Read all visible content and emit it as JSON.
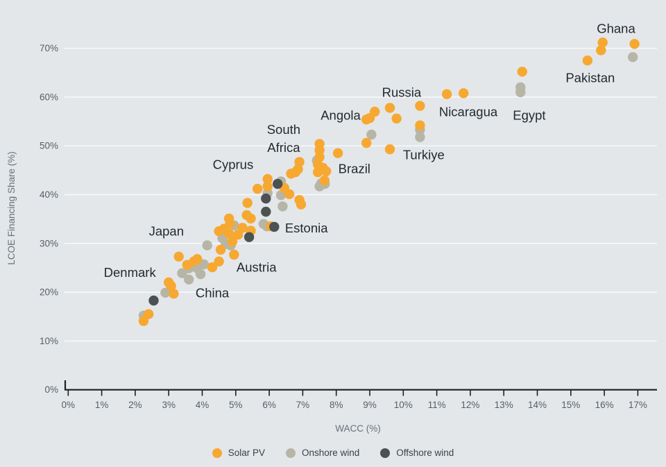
{
  "chart_data": {
    "type": "scatter",
    "title": "",
    "xlabel": "WACC (%)",
    "ylabel": "LCOE Financing Share (%)",
    "xlim": [
      0,
      17.5
    ],
    "ylim": [
      0,
      75
    ],
    "x_tick_values": [
      0,
      1,
      2,
      3,
      4,
      5,
      6,
      7,
      8,
      9,
      10,
      11,
      12,
      13,
      14,
      15,
      16,
      17
    ],
    "x_tick_labels": [
      "0%",
      "1%",
      "2%",
      "3%",
      "4%",
      "5%",
      "6%",
      "7%",
      "8%",
      "9%",
      "10%",
      "11%",
      "12%",
      "13%",
      "14%",
      "15%",
      "16%",
      "17%"
    ],
    "y_tick_values": [
      0,
      10,
      20,
      30,
      40,
      50,
      60,
      70
    ],
    "y_tick_labels": [
      "0%",
      "10%",
      "20%",
      "30%",
      "40%",
      "50%",
      "60%",
      "70%"
    ],
    "grid": "horizontal-white-lines",
    "legend_position": "bottom-center",
    "series": [
      {
        "name": "Solar PV",
        "color": "#F7A831",
        "points": [
          [
            2.25,
            14.1
          ],
          [
            2.4,
            15.5
          ],
          [
            3.0,
            22.0
          ],
          [
            3.07,
            21.3
          ],
          [
            3.15,
            19.7
          ],
          [
            3.3,
            27.3
          ],
          [
            3.55,
            25.6
          ],
          [
            3.75,
            26.3
          ],
          [
            3.85,
            26.8
          ],
          [
            4.3,
            25.1
          ],
          [
            4.5,
            26.3
          ],
          [
            4.5,
            32.5
          ],
          [
            4.55,
            28.7
          ],
          [
            4.65,
            33.0
          ],
          [
            4.8,
            32.0
          ],
          [
            4.83,
            34.1
          ],
          [
            4.8,
            35.1
          ],
          [
            4.9,
            30.4
          ],
          [
            4.95,
            27.7
          ],
          [
            5.07,
            31.8
          ],
          [
            5.2,
            33.2
          ],
          [
            5.33,
            35.8
          ],
          [
            5.45,
            35.1
          ],
          [
            5.45,
            32.6
          ],
          [
            5.35,
            38.3
          ],
          [
            5.65,
            41.2
          ],
          [
            5.95,
            43.2
          ],
          [
            5.95,
            41.7
          ],
          [
            6.05,
            33.5
          ],
          [
            6.45,
            41.4
          ],
          [
            6.6,
            40.1
          ],
          [
            6.65,
            44.3
          ],
          [
            6.78,
            44.6
          ],
          [
            6.86,
            45.2
          ],
          [
            6.9,
            46.7
          ],
          [
            6.9,
            38.9
          ],
          [
            6.95,
            38.0
          ],
          [
            7.45,
            44.6
          ],
          [
            7.45,
            46.2
          ],
          [
            7.5,
            50.4
          ],
          [
            7.5,
            49.1
          ],
          [
            7.5,
            47.7
          ],
          [
            7.6,
            45.5
          ],
          [
            7.65,
            42.9
          ],
          [
            7.7,
            44.8
          ],
          [
            8.05,
            48.5
          ],
          [
            8.9,
            50.6
          ],
          [
            8.9,
            55.4
          ],
          [
            9.0,
            55.7
          ],
          [
            9.15,
            57.0
          ],
          [
            9.6,
            57.8
          ],
          [
            9.6,
            49.3
          ],
          [
            9.8,
            55.6
          ],
          [
            10.5,
            58.2
          ],
          [
            10.5,
            54.2
          ],
          [
            11.3,
            60.6
          ],
          [
            11.8,
            60.8
          ],
          [
            13.55,
            65.2
          ],
          [
            15.5,
            67.5
          ],
          [
            15.9,
            69.6
          ],
          [
            15.95,
            71.2
          ],
          [
            16.9,
            70.9
          ]
        ]
      },
      {
        "name": "Onshore wind",
        "color": "#B7B5A6",
        "points": [
          [
            2.25,
            15.2
          ],
          [
            2.9,
            19.9
          ],
          [
            3.4,
            23.9
          ],
          [
            3.6,
            24.9
          ],
          [
            3.6,
            22.6
          ],
          [
            3.85,
            24.9
          ],
          [
            3.95,
            23.7
          ],
          [
            4.05,
            25.7
          ],
          [
            4.15,
            29.6
          ],
          [
            4.6,
            31.1
          ],
          [
            4.7,
            29.9
          ],
          [
            4.85,
            29.6
          ],
          [
            4.95,
            33.7
          ],
          [
            5.83,
            34.0
          ],
          [
            5.93,
            33.5
          ],
          [
            5.95,
            40.3
          ],
          [
            6.35,
            42.7
          ],
          [
            6.35,
            39.9
          ],
          [
            6.4,
            37.6
          ],
          [
            7.42,
            47.0
          ],
          [
            7.55,
            42.3
          ],
          [
            7.66,
            42.2
          ],
          [
            7.5,
            41.7
          ],
          [
            9.05,
            52.3
          ],
          [
            10.5,
            53.3
          ],
          [
            10.5,
            51.8
          ],
          [
            13.5,
            62.0
          ],
          [
            13.5,
            61.0
          ],
          [
            16.85,
            68.2
          ]
        ]
      },
      {
        "name": "Offshore wind",
        "color": "#4C5154",
        "points": [
          [
            2.55,
            18.3
          ],
          [
            5.4,
            31.3
          ],
          [
            5.9,
            36.5
          ],
          [
            5.9,
            39.2
          ],
          [
            6.15,
            33.4
          ],
          [
            6.25,
            42.2
          ]
        ]
      }
    ],
    "annotations": [
      {
        "label": "Ghana",
        "x": 16.35,
        "y": 74.1
      },
      {
        "label": "Pakistan",
        "x": 15.58,
        "y": 64.0
      },
      {
        "label": "Russia",
        "x": 9.95,
        "y": 61.0
      },
      {
        "label": "Nicaragua",
        "x": 11.94,
        "y": 57.0
      },
      {
        "label": "Egypt",
        "x": 13.76,
        "y": 56.3
      },
      {
        "label": "Angola",
        "x": 8.13,
        "y": 56.3
      },
      {
        "label": "Turkiye",
        "x": 10.61,
        "y": 48.2
      },
      {
        "label": "South Africa",
        "x": 6.43,
        "y": 53.4,
        "lines": [
          "South",
          "Africa"
        ]
      },
      {
        "label": "Brazil",
        "x": 8.54,
        "y": 45.3
      },
      {
        "label": "Cyprus",
        "x": 4.92,
        "y": 46.2
      },
      {
        "label": "Estonia",
        "x": 7.11,
        "y": 33.2
      },
      {
        "label": "Japan",
        "x": 2.93,
        "y": 32.5
      },
      {
        "label": "Austria",
        "x": 5.62,
        "y": 25.1
      },
      {
        "label": "Denmark",
        "x": 1.84,
        "y": 24.1
      },
      {
        "label": "China",
        "x": 4.3,
        "y": 19.9
      }
    ]
  },
  "legend": {
    "items": [
      {
        "label": "Solar PV",
        "color": "#F7A831"
      },
      {
        "label": "Onshore wind",
        "color": "#B7B5A6"
      },
      {
        "label": "Offshore wind",
        "color": "#4C5154"
      }
    ]
  },
  "colors": {
    "background": "#E3E7EA",
    "gridline": "#F6F8F9",
    "axis": "#1B1F22",
    "tick_text": "#565E64",
    "axis_title_text": "#687076",
    "annotation_text": "#232A2F"
  }
}
